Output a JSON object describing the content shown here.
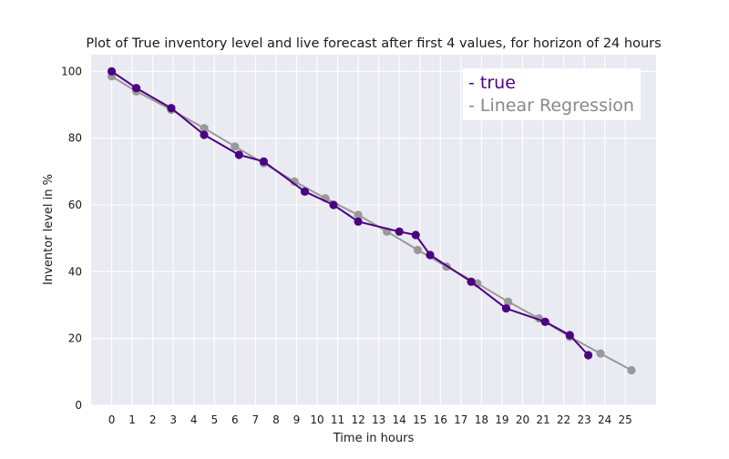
{
  "chart_data": {
    "type": "line",
    "title": "Plot of True inventory level and live forecast after first 4 values, for horizon of 24 hours",
    "xlabel": "Time in hours",
    "ylabel": "Inventor level in %",
    "xlim": [
      -1.0,
      26.5
    ],
    "ylim": [
      0,
      105
    ],
    "x_ticks": [
      0,
      1,
      2,
      3,
      4,
      5,
      6,
      7,
      8,
      9,
      10,
      11,
      12,
      13,
      14,
      15,
      16,
      17,
      18,
      19,
      20,
      21,
      22,
      23,
      24,
      25
    ],
    "y_ticks": [
      0,
      20,
      40,
      60,
      80,
      100
    ],
    "grid": true,
    "legend_position": "top-right",
    "series": [
      {
        "name": "true",
        "legend_label": "- true",
        "color": "#4b0082",
        "x": [
          0,
          1.2,
          2.9,
          4.5,
          6.2,
          7.4,
          9.4,
          10.8,
          12.0,
          14.0,
          14.8,
          15.5,
          17.5,
          19.2,
          21.1,
          22.3,
          23.2
        ],
        "y": [
          100,
          95,
          89,
          81,
          75,
          73,
          64,
          60,
          55,
          52,
          51,
          45,
          37,
          29,
          25,
          21,
          15
        ]
      },
      {
        "name": "Linear Regression",
        "legend_label": "- Linear Regression",
        "color": "#999999",
        "x": [
          0,
          1.2,
          2.9,
          4.5,
          6.0,
          7.4,
          8.9,
          10.4,
          12.0,
          13.4,
          14.9,
          16.3,
          17.8,
          19.3,
          20.8,
          22.3,
          23.8,
          25.3
        ],
        "y": [
          98.5,
          94,
          88.5,
          83,
          77.5,
          72.5,
          67,
          62,
          57,
          52,
          46.5,
          41.5,
          36.5,
          31,
          26,
          20.5,
          15.5,
          10.5
        ]
      }
    ]
  }
}
